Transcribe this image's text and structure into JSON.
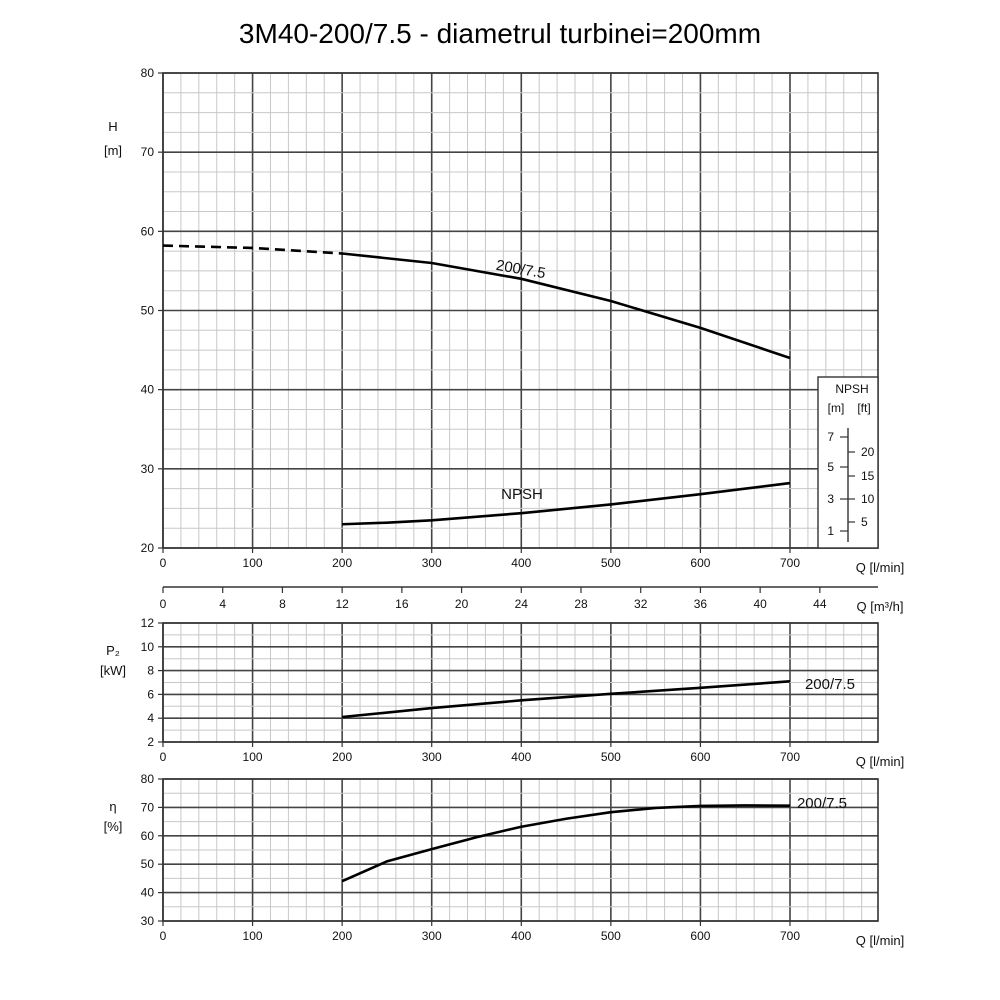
{
  "title": "3M40-200/7.5 - diametrul turbinei=200mm",
  "chart_data": [
    {
      "type": "line",
      "panel": "head",
      "ylabel": "H",
      "yunit": "[m]",
      "ylim": [
        20,
        80
      ],
      "yticks": [
        "20",
        "30",
        "40",
        "50",
        "60",
        "70",
        "80"
      ],
      "xlim": [
        0,
        800
      ],
      "xlabel": "Q [l/min]",
      "xticks": [
        "0",
        "100",
        "200",
        "300",
        "400",
        "500",
        "600",
        "700"
      ],
      "x2label": "Q [m³/h]",
      "x2ticks": [
        "0",
        "4",
        "8",
        "12",
        "16",
        "20",
        "24",
        "28",
        "32",
        "36",
        "40",
        "44"
      ],
      "series": [
        {
          "name": "200/7.5",
          "x": [
            0,
            100,
            200,
            300,
            400,
            500,
            600,
            700
          ],
          "y": [
            58.2,
            57.9,
            57.2,
            56.0,
            54.0,
            51.2,
            47.8,
            44.0
          ],
          "dashed_below_x": 200
        },
        {
          "name": "NPSH",
          "x": [
            200,
            250,
            300,
            400,
            500,
            600,
            700
          ],
          "y": [
            23.0,
            23.2,
            23.5,
            24.4,
            25.5,
            26.8,
            28.2
          ]
        }
      ],
      "npsh_box": {
        "title": "NPSH",
        "units": [
          "[m]",
          "[ft]"
        ],
        "m_ticks": [
          "7",
          "5",
          "3",
          "1"
        ],
        "ft_ticks": [
          "20",
          "15",
          "10",
          "5"
        ]
      },
      "grid": true
    },
    {
      "type": "line",
      "panel": "power",
      "ylabel": "P₂",
      "yunit": "[kW]",
      "ylim": [
        2,
        12
      ],
      "yticks": [
        "2",
        "4",
        "6",
        "8",
        "10",
        "12"
      ],
      "xlim": [
        0,
        800
      ],
      "xlabel": "Q [l/min]",
      "xticks": [
        "0",
        "100",
        "200",
        "300",
        "400",
        "500",
        "600",
        "700"
      ],
      "series": [
        {
          "name": "200/7.5",
          "x": [
            200,
            300,
            400,
            500,
            600,
            700
          ],
          "y": [
            4.1,
            4.85,
            5.5,
            6.05,
            6.55,
            7.1
          ]
        }
      ],
      "grid": true
    },
    {
      "type": "line",
      "panel": "efficiency",
      "ylabel": "η",
      "yunit": "[%]",
      "ylim": [
        30,
        80
      ],
      "yticks": [
        "30",
        "40",
        "50",
        "60",
        "70",
        "80"
      ],
      "xlim": [
        0,
        800
      ],
      "xlabel": "Q [l/min]",
      "xticks": [
        "0",
        "100",
        "200",
        "300",
        "400",
        "500",
        "600",
        "700"
      ],
      "series": [
        {
          "name": "200/7.5",
          "x": [
            200,
            250,
            300,
            350,
            400,
            450,
            500,
            550,
            600,
            650,
            700
          ],
          "y": [
            44,
            51,
            55.3,
            59.5,
            63.2,
            66.0,
            68.3,
            69.8,
            70.5,
            70.7,
            70.6
          ]
        }
      ],
      "grid": true
    }
  ]
}
